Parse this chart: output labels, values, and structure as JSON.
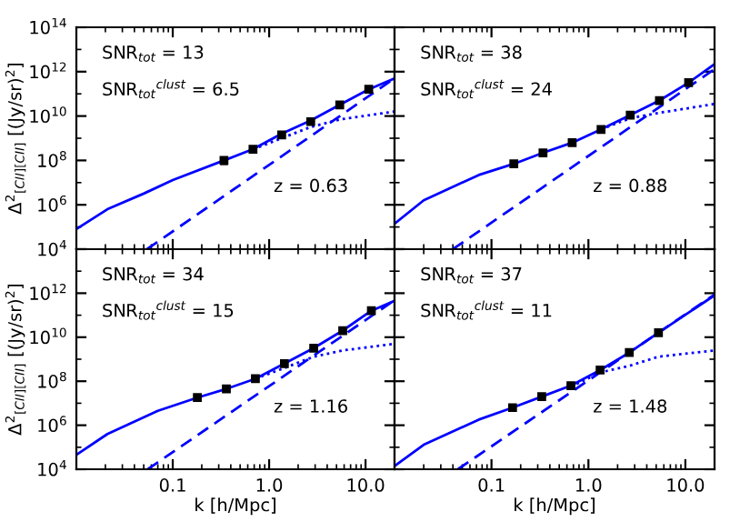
{
  "chart_data": [
    {
      "type": "line",
      "ylabel": "Δ$^{2}$$_{[CII][CII]}$ [(Jy/sr)$^{2}$]",
      "log": "xy",
      "xlim": [
        0.01,
        20
      ],
      "ylim": [
        10000,
        100000000000000.0
      ],
      "tick_labels": "y",
      "xticks": [
        {
          "value": 0.1,
          "label": null
        },
        {
          "value": 1,
          "label": null
        },
        {
          "value": 10,
          "label": null
        }
      ],
      "yticks": [
        {
          "value": 10000,
          "label": "10$^{4}$"
        },
        {
          "value": 1000000.0,
          "label": "10$^{6}$"
        },
        {
          "value": 100000000.0,
          "label": "10$^{8}$"
        },
        {
          "value": 10000000000.0,
          "label": "10$^{10}$"
        },
        {
          "value": 1000000000000.0,
          "label": "10$^{12}$"
        },
        {
          "value": 100000000000000.0,
          "label": "10$^{14}$"
        }
      ],
      "annotations": [
        "SNR$_{tot}$ = 13",
        "SNR$_{tot}$$^{clust}$ = 6.5",
        "z = 0.63"
      ],
      "series": [
        {
          "type": "line",
          "line_style": "solid",
          "color": "#0000ff",
          "x": [
            0.01,
            0.021,
            0.05,
            0.1,
            0.34,
            0.68,
            1.35,
            2.7,
            5.4,
            10.8,
            20
          ],
          "values": [
            80000.0,
            630000.0,
            3200000.0,
            13000000.0,
            100000000.0,
            320000000.0,
            1600000000.0,
            6300000000.0,
            32000000000.0,
            160000000000.0,
            500000000000.0
          ]
        },
        {
          "type": "line",
          "line_style": "dashed",
          "color": "#0000ff",
          "x": [
            0.054,
            20
          ],
          "values": [
            10000,
            500000000000.0
          ]
        },
        {
          "type": "line",
          "line_style": "dotted",
          "color": "#0000ff",
          "x": [
            0.68,
            1.35,
            2.7,
            5.4,
            20
          ],
          "values": [
            320000000.0,
            1000000000.0,
            3200000000.0,
            7000000000.0,
            16000000000.0
          ]
        },
        {
          "type": "scatter",
          "marker": "square",
          "color": "#000000",
          "x": [
            0.34,
            0.68,
            1.35,
            2.7,
            5.4,
            10.8
          ],
          "values": [
            100000000.0,
            320000000.0,
            1400000000.0,
            5600000000.0,
            32000000000.0,
            160000000000.0
          ],
          "errors": [
            30000000.0,
            60000000.0,
            200000000.0,
            600000000.0,
            3000000000.0,
            15000000000.0
          ]
        }
      ]
    },
    {
      "type": "line",
      "log": "xy",
      "xlim": [
        0.01,
        20
      ],
      "ylim": [
        10000,
        100000000000000.0
      ],
      "tick_labels": false,
      "xticks": [
        {
          "value": 0.1,
          "label": null
        },
        {
          "value": 1,
          "label": null
        },
        {
          "value": 10,
          "label": null
        }
      ],
      "yticks": [
        {
          "value": 10000,
          "label": null
        },
        {
          "value": 1000000.0,
          "label": null
        },
        {
          "value": 100000000.0,
          "label": null
        },
        {
          "value": 10000000000.0,
          "label": null
        },
        {
          "value": 1000000000000.0,
          "label": null
        },
        {
          "value": 100000000000000.0,
          "label": null
        }
      ],
      "annotations": [
        "SNR$_{tot}$ = 38",
        "SNR$_{tot}$$^{clust}$ = 24",
        "z = 0.88"
      ],
      "series": [
        {
          "type": "line",
          "line_style": "solid",
          "color": "#0000ff",
          "x": [
            0.01,
            0.02,
            0.074,
            0.17,
            0.34,
            0.68,
            1.35,
            2.7,
            5.4,
            10.8,
            20
          ],
          "values": [
            140000.0,
            1600000.0,
            22000000.0,
            70000000.0,
            220000000.0,
            630000000.0,
            2500000000.0,
            11000000000.0,
            50000000000.0,
            320000000000.0,
            2200000000000.0
          ]
        },
        {
          "type": "line",
          "line_style": "dashed",
          "color": "#0000ff",
          "x": [
            0.04,
            20
          ],
          "values": [
            10000,
            1300000000000.0
          ]
        },
        {
          "type": "line",
          "line_style": "dotted",
          "color": "#0000ff",
          "x": [
            1.35,
            2.7,
            5.4,
            20
          ],
          "values": [
            2500000000.0,
            8000000000.0,
            14000000000.0,
            35000000000.0
          ]
        },
        {
          "type": "scatter",
          "marker": "square",
          "color": "#000000",
          "x": [
            0.17,
            0.34,
            0.68,
            1.35,
            2.7,
            5.4,
            10.8
          ],
          "values": [
            70000000.0,
            220000000.0,
            630000000.0,
            2500000000.0,
            11000000000.0,
            50000000000.0,
            320000000000.0
          ],
          "errors": [
            10000000.0,
            20000000.0,
            50000000.0,
            200000000.0,
            800000000.0,
            4000000000.0,
            25000000000.0
          ]
        }
      ]
    },
    {
      "type": "line",
      "ylabel": "Δ$^{2}$$_{[CII][CII]}$ [(Jy/sr)$^{2}$]",
      "xlabel": "k [h/Mpc]",
      "log": "xy",
      "xlim": [
        0.01,
        20
      ],
      "ylim": [
        10000,
        100000000000000.0
      ],
      "xticks": [
        {
          "value": 0.1,
          "label": "0.1"
        },
        {
          "value": 1,
          "label": "1.0"
        },
        {
          "value": 10,
          "label": "10.0"
        }
      ],
      "yticks": [
        {
          "value": 10000,
          "label": "10$^{4}$"
        },
        {
          "value": 1000000.0,
          "label": "10$^{6}$"
        },
        {
          "value": 100000000.0,
          "label": "10$^{8}$"
        },
        {
          "value": 10000000000.0,
          "label": "10$^{10}$"
        },
        {
          "value": 1000000000000.0,
          "label": "10$^{12}$"
        },
        {
          "value": 100000000000000.0,
          "label": null
        }
      ],
      "annotations": [
        "SNR$_{tot}$ = 34",
        "SNR$_{tot}$$^{clust}$ = 15",
        "z = 1.16"
      ],
      "series": [
        {
          "type": "line",
          "line_style": "solid",
          "color": "#0000ff",
          "x": [
            0.01,
            0.021,
            0.07,
            0.18,
            0.36,
            0.72,
            1.44,
            2.9,
            5.8,
            11.5,
            20
          ],
          "values": [
            45000.0,
            400000.0,
            4500000.0,
            18000000.0,
            45000000.0,
            130000000.0,
            630000000.0,
            3200000000.0,
            20000000000.0,
            160000000000.0,
            450000000000.0
          ]
        },
        {
          "type": "line",
          "line_style": "dashed",
          "color": "#0000ff",
          "x": [
            0.055,
            20
          ],
          "values": [
            10000,
            480000000000.0
          ]
        },
        {
          "type": "line",
          "line_style": "dotted",
          "color": "#0000ff",
          "x": [
            0.72,
            1.44,
            2.9,
            5.8,
            20
          ],
          "values": [
            130000000.0,
            400000000.0,
            1300000000.0,
            2500000000.0,
            5000000000.0
          ]
        },
        {
          "type": "scatter",
          "marker": "square",
          "color": "#000000",
          "x": [
            0.18,
            0.36,
            0.72,
            1.44,
            2.9,
            5.8,
            11.5
          ],
          "values": [
            18000000.0,
            45000000.0,
            130000000.0,
            630000000.0,
            3200000000.0,
            20000000000.0,
            160000000000.0
          ],
          "errors": [
            5000000.0,
            8000000.0,
            20000000.0,
            100000000.0,
            500000000.0,
            3000000000.0,
            30000000000.0
          ]
        }
      ]
    },
    {
      "type": "line",
      "xlabel": "k [h/Mpc]",
      "log": "xy",
      "xlim": [
        0.01,
        20
      ],
      "ylim": [
        10000,
        100000000000000.0
      ],
      "tick_labels": "x",
      "xticks": [
        {
          "value": 0.1,
          "label": "0.1"
        },
        {
          "value": 1,
          "label": "1.0"
        },
        {
          "value": 10,
          "label": "10.0"
        }
      ],
      "yticks": [
        {
          "value": 10000,
          "label": null
        },
        {
          "value": 1000000.0,
          "label": null
        },
        {
          "value": 100000000.0,
          "label": null
        },
        {
          "value": 10000000000.0,
          "label": null
        },
        {
          "value": 1000000000000.0,
          "label": null
        },
        {
          "value": 100000000000000.0,
          "label": null
        }
      ],
      "annotations": [
        "SNR$_{tot}$ = 37",
        "SNR$_{tot}$$^{clust}$ = 11",
        "z = 1.48"
      ],
      "series": [
        {
          "type": "line",
          "line_style": "solid",
          "color": "#0000ff",
          "x": [
            0.01,
            0.02,
            0.074,
            0.165,
            0.33,
            0.66,
            1.32,
            2.64,
            5.28,
            20
          ],
          "values": [
            14000.0,
            130000.0,
            1800000.0,
            6300000.0,
            20000000.0,
            63000000.0,
            320000000.0,
            2000000000.0,
            16000000000.0,
            800000000000.0
          ]
        },
        {
          "type": "line",
          "line_style": "dashed",
          "color": "#0000ff",
          "x": [
            0.045,
            20
          ],
          "values": [
            10000,
            870000000000.0
          ]
        },
        {
          "type": "line",
          "line_style": "dotted",
          "color": "#0000ff",
          "x": [
            0.66,
            1.32,
            2.64,
            5.28,
            20
          ],
          "values": [
            56000000.0,
            250000000.0,
            500000000.0,
            1300000000.0,
            2500000000.0
          ]
        },
        {
          "type": "scatter",
          "marker": "square",
          "color": "#000000",
          "x": [
            0.165,
            0.33,
            0.66,
            1.32,
            2.64,
            5.28
          ],
          "values": [
            6300000.0,
            20000000.0,
            63000000.0,
            320000000.0,
            2000000000.0,
            16000000000.0
          ],
          "errors": [
            1000000.0,
            2000000.0,
            5000000.0,
            30000000.0,
            200000000.0,
            1500000000.0
          ]
        }
      ]
    }
  ]
}
